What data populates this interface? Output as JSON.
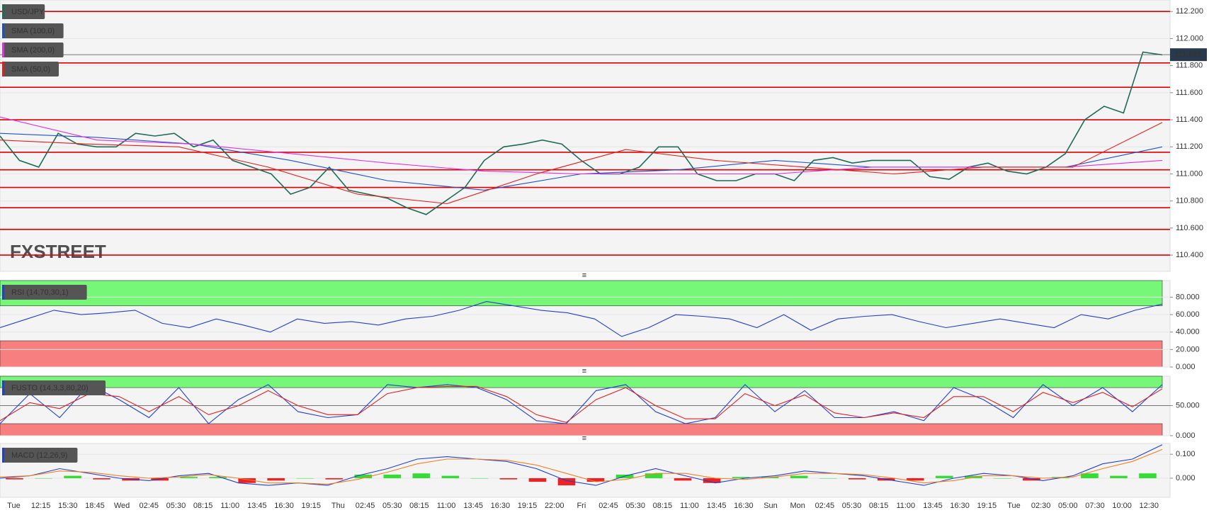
{
  "chart_data": [
    {
      "type": "line",
      "watermark": "FXSTREET",
      "ylim": [
        110.28,
        112.285
      ],
      "yticks": [
        {
          "value": 112.2,
          "label": "112.200"
        },
        {
          "value": 112.0,
          "label": "112.000"
        },
        {
          "value": 111.8,
          "label": "111.800"
        },
        {
          "value": 111.6,
          "label": "111.600"
        },
        {
          "value": 111.4,
          "label": "111.400"
        },
        {
          "value": 111.2,
          "label": "111.200"
        },
        {
          "value": 111.0,
          "label": "111.000"
        },
        {
          "value": 110.8,
          "label": "110.800"
        },
        {
          "value": 110.6,
          "label": "110.600"
        },
        {
          "value": 110.4,
          "label": "110.400"
        }
      ],
      "last_price": {
        "value": 111.881,
        "label": "111.881"
      },
      "levels": [
        112.2,
        111.82,
        111.64,
        111.4,
        111.16,
        111.03,
        110.9,
        110.75,
        110.59,
        110.4
      ],
      "level_color": "#e00000",
      "series": [
        {
          "name": "USD/JPY",
          "color": "#1e6b5a",
          "values": [
            111.28,
            111.1,
            111.05,
            111.3,
            111.22,
            111.2,
            111.2,
            111.3,
            111.28,
            111.3,
            111.2,
            111.25,
            111.1,
            111.05,
            111.0,
            110.85,
            110.9,
            111.05,
            110.88,
            110.85,
            110.82,
            110.75,
            110.7,
            110.8,
            110.9,
            111.1,
            111.2,
            111.22,
            111.25,
            111.22,
            111.1,
            111.0,
            111.0,
            111.05,
            111.2,
            111.2,
            111.0,
            110.95,
            110.95,
            111.0,
            111.0,
            110.95,
            111.1,
            111.12,
            111.08,
            111.1,
            111.1,
            111.1,
            110.98,
            110.96,
            111.05,
            111.08,
            111.02,
            111.0,
            111.05,
            111.15,
            111.4,
            111.5,
            111.45,
            111.9,
            111.88
          ]
        },
        {
          "name": "SMA (100,0)",
          "color": "#2050c8",
          "values": [
            111.3,
            111.27,
            111.22,
            111.1,
            110.95,
            110.88,
            111.0,
            111.03,
            111.1,
            111.05,
            111.05,
            111.05,
            111.2
          ]
        },
        {
          "name": "SMA (200,0)",
          "color": "#e030e0",
          "values": [
            111.42,
            111.25,
            111.22,
            111.15,
            111.08,
            111.02,
            111.0,
            111.0,
            111.0,
            111.05,
            111.05,
            111.05,
            111.1
          ]
        },
        {
          "name": "SMA (50,0)",
          "color": "#e02020",
          "values": [
            111.25,
            111.22,
            111.2,
            111.05,
            110.85,
            110.78,
            111.0,
            111.18,
            111.1,
            111.05,
            111.0,
            111.05,
            111.05,
            111.38
          ]
        }
      ]
    },
    {
      "type": "line",
      "legend": "RSI (14,70,30,1)",
      "ylim": [
        0,
        99
      ],
      "yticks": [
        {
          "value": 80,
          "label": "80.000"
        },
        {
          "value": 60,
          "label": "60.000"
        },
        {
          "value": 40,
          "label": "40.000"
        },
        {
          "value": 20,
          "label": "20.000"
        },
        {
          "value": 0,
          "label": "0.000"
        }
      ],
      "bands": [
        {
          "range": [
            70,
            99
          ],
          "color": "#77f777"
        },
        {
          "range": [
            0,
            30
          ],
          "color": "#f77f7f"
        }
      ],
      "series": [
        {
          "color": "#2040d0",
          "values": [
            45,
            55,
            65,
            60,
            62,
            65,
            50,
            45,
            55,
            48,
            40,
            55,
            50,
            52,
            48,
            55,
            58,
            65,
            75,
            70,
            65,
            62,
            55,
            35,
            45,
            60,
            58,
            55,
            45,
            60,
            42,
            55,
            58,
            60,
            52,
            45,
            50,
            55,
            50,
            45,
            60,
            55,
            65,
            72
          ]
        }
      ]
    },
    {
      "type": "line",
      "legend": "FUSTO (14,3,3,80,20)",
      "ylim": [
        0,
        99
      ],
      "midline": 50,
      "yticks": [
        {
          "value": 50,
          "label": "50.000"
        },
        {
          "value": 0,
          "label": "0.000"
        }
      ],
      "bands": [
        {
          "range": [
            80,
            99
          ],
          "color": "#77f777"
        },
        {
          "range": [
            0,
            20
          ],
          "color": "#f77f7f"
        }
      ],
      "series": [
        {
          "color": "#2040d0",
          "values": [
            20,
            70,
            30,
            85,
            60,
            30,
            80,
            20,
            60,
            85,
            40,
            30,
            35,
            85,
            80,
            85,
            80,
            60,
            25,
            20,
            75,
            85,
            40,
            20,
            30,
            85,
            40,
            75,
            30,
            30,
            40,
            25,
            80,
            60,
            30,
            85,
            50,
            80,
            40,
            85
          ]
        },
        {
          "color": "#e02020",
          "values": [
            25,
            55,
            45,
            70,
            65,
            40,
            65,
            35,
            50,
            75,
            50,
            35,
            35,
            70,
            80,
            82,
            82,
            65,
            35,
            22,
            60,
            80,
            50,
            28,
            28,
            70,
            50,
            68,
            38,
            30,
            38,
            30,
            65,
            65,
            40,
            72,
            55,
            72,
            48,
            78
          ]
        }
      ]
    },
    {
      "type": "line",
      "legend": "MACD (12,26,9)",
      "ylim": [
        -0.08,
        0.145
      ],
      "yticks": [
        {
          "value": 0.1,
          "label": "0.100"
        },
        {
          "value": 0,
          "label": "0.000"
        }
      ],
      "histogram": {
        "up_color": "#33dd33",
        "down_color": "#ee2222",
        "values": [
          -0.005,
          0,
          0.01,
          -0.005,
          -0.01,
          -0.01,
          0.005,
          0.005,
          -0.02,
          -0.01,
          0,
          -0.005,
          0.015,
          0.015,
          0.02,
          0.01,
          0,
          -0.005,
          -0.015,
          -0.03,
          -0.015,
          0.015,
          0.02,
          -0.01,
          -0.02,
          0.005,
          0.005,
          0.01,
          0,
          -0.005,
          -0.01,
          -0.01,
          0.01,
          0.01,
          0,
          -0.01,
          0.005,
          0.02,
          0.01,
          0.02
        ]
      },
      "series": [
        {
          "color": "#2040d0",
          "values": [
            0,
            0.01,
            0.04,
            0.02,
            0,
            -0.01,
            0.01,
            0.02,
            -0.02,
            -0.03,
            -0.02,
            -0.03,
            0.01,
            0.04,
            0.08,
            0.09,
            0.08,
            0.07,
            0.04,
            -0.01,
            -0.03,
            0.01,
            0.04,
            0.01,
            -0.02,
            0,
            0.01,
            0.03,
            0.02,
            0.01,
            -0.01,
            -0.03,
            0,
            0.02,
            0.01,
            -0.01,
            0.01,
            0.06,
            0.08,
            0.14
          ]
        },
        {
          "color": "#f08020",
          "values": [
            0.005,
            0.01,
            0.03,
            0.025,
            0.01,
            0,
            0.005,
            0.015,
            0,
            -0.02,
            -0.02,
            -0.025,
            -0.005,
            0.025,
            0.06,
            0.08,
            0.08,
            0.075,
            0.055,
            0.02,
            -0.015,
            -0.005,
            0.02,
            0.02,
            0,
            -0.005,
            0.005,
            0.02,
            0.02,
            0.015,
            0,
            -0.02,
            -0.01,
            0.01,
            0.01,
            0,
            0.005,
            0.04,
            0.07,
            0.12
          ]
        }
      ]
    }
  ],
  "time_axis": {
    "labels": [
      "Tue",
      "12:15",
      "15:30",
      "18:45",
      "Wed",
      "02:45",
      "05:30",
      "08:15",
      "11:00",
      "13:45",
      "16:30",
      "19:15",
      "Thu",
      "02:45",
      "05:30",
      "08:15",
      "11:00",
      "13:45",
      "16:30",
      "19:15",
      "22:00",
      "Fri",
      "02:45",
      "05:30",
      "08:15",
      "11:00",
      "13:45",
      "16:30",
      "Sun",
      "Mon",
      "02:45",
      "05:30",
      "08:15",
      "11:00",
      "13:45",
      "16:30",
      "19:15",
      "Tue",
      "02:30",
      "05:00",
      "07:30",
      "10:00",
      "12:30"
    ]
  }
}
